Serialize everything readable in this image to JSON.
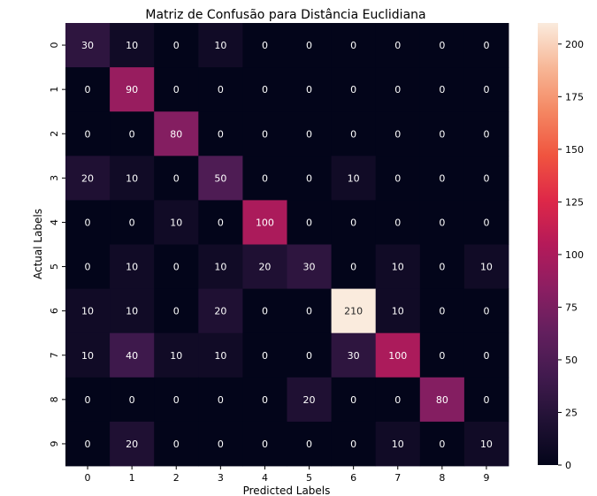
{
  "chart_data": {
    "type": "heatmap",
    "title": "Matriz de Confusão para Distância Euclidiana",
    "xlabel": "Predicted Labels",
    "ylabel": "Actual Labels",
    "x_categories": [
      "0",
      "1",
      "2",
      "3",
      "4",
      "5",
      "6",
      "7",
      "8",
      "9"
    ],
    "y_categories": [
      "0",
      "1",
      "2",
      "3",
      "4",
      "5",
      "6",
      "7",
      "8",
      "9"
    ],
    "values": [
      [
        30,
        10,
        0,
        10,
        0,
        0,
        0,
        0,
        0,
        0
      ],
      [
        0,
        90,
        0,
        0,
        0,
        0,
        0,
        0,
        0,
        0
      ],
      [
        0,
        0,
        80,
        0,
        0,
        0,
        0,
        0,
        0,
        0
      ],
      [
        20,
        10,
        0,
        50,
        0,
        0,
        10,
        0,
        0,
        0
      ],
      [
        0,
        0,
        10,
        0,
        100,
        0,
        0,
        0,
        0,
        0
      ],
      [
        0,
        10,
        0,
        10,
        20,
        30,
        0,
        10,
        0,
        10
      ],
      [
        10,
        10,
        0,
        20,
        0,
        0,
        210,
        10,
        0,
        0
      ],
      [
        10,
        40,
        10,
        10,
        0,
        0,
        30,
        100,
        0,
        0
      ],
      [
        0,
        0,
        0,
        0,
        0,
        20,
        0,
        0,
        80,
        0
      ],
      [
        0,
        20,
        0,
        0,
        0,
        0,
        0,
        10,
        0,
        10
      ]
    ],
    "color_range": [
      0,
      210
    ],
    "colorbar_ticks": [
      0,
      25,
      50,
      75,
      100,
      125,
      150,
      175,
      200
    ],
    "colormap": "rocket"
  }
}
